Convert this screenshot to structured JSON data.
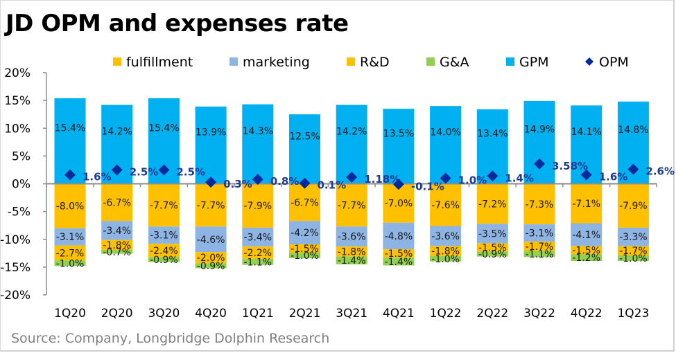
{
  "title": "JD OPM and expenses rate",
  "source": "Source: Company, Longbridge Dolphin Research",
  "colors": {
    "fulfillment": "#ffc000",
    "marketing": "#8eb4e3",
    "rnd": "#ffc000",
    "gna": "#92d050",
    "gpm": "#00b0f0",
    "opm": "#002b9c",
    "axis": "#8c8c8c"
  },
  "chart_data": {
    "type": "bar",
    "subtype": "stacked-bar-with-scatter",
    "title": "JD OPM and expenses rate",
    "xlabel": "",
    "ylabel": "",
    "ylim": [
      -20,
      20
    ],
    "yticks": [
      20,
      15,
      10,
      5,
      0,
      -5,
      -10,
      -15,
      -20
    ],
    "ytick_labels": [
      "20%",
      "15%",
      "10%",
      "5%",
      "0%",
      "-5%",
      "-10%",
      "-15%",
      "-20%"
    ],
    "grid": false,
    "legend_position": "top",
    "legend": [
      "fulfillment",
      "marketing",
      "R&D",
      "G&A",
      "GPM",
      "OPM"
    ],
    "categories": [
      "1Q20",
      "2Q20",
      "3Q20",
      "4Q20",
      "1Q21",
      "2Q21",
      "3Q21",
      "4Q21",
      "1Q22",
      "2Q22",
      "3Q22",
      "4Q22",
      "1Q23"
    ],
    "series": [
      {
        "name": "GPM",
        "key": "gpm",
        "type": "bar",
        "values": [
          15.4,
          14.2,
          15.4,
          13.9,
          14.3,
          12.5,
          14.2,
          13.5,
          14.0,
          13.4,
          14.9,
          14.1,
          14.8
        ],
        "labels": [
          "15.4%",
          "14.2%",
          "15.4%",
          "13.9%",
          "14.3%",
          "12.5%",
          "14.2%",
          "13.5%",
          "14.0%",
          "13.4%",
          "14.9%",
          "14.1%",
          "14.8%"
        ]
      },
      {
        "name": "fulfillment",
        "key": "fulfillment",
        "type": "bar",
        "values": [
          -8.0,
          -6.7,
          -7.7,
          -7.7,
          -7.9,
          -6.7,
          -7.7,
          -7.0,
          -7.6,
          -7.2,
          -7.3,
          -7.1,
          -7.9
        ],
        "labels": [
          "-8.0%",
          "-6.7%",
          "-7.7%",
          "-7.7%",
          "-7.9%",
          "-6.7%",
          "-7.7%",
          "-7.0%",
          "-7.6%",
          "-7.2%",
          "-7.3%",
          "-7.1%",
          "-7.9%"
        ]
      },
      {
        "name": "marketing",
        "key": "marketing",
        "type": "bar",
        "values": [
          -3.1,
          -3.4,
          -3.1,
          -4.6,
          -3.4,
          -4.2,
          -3.6,
          -4.8,
          -3.6,
          -3.5,
          -3.1,
          -4.1,
          -3.3
        ],
        "labels": [
          "-3.1%",
          "-3.4%",
          "-3.1%",
          "-4.6%",
          "-3.4%",
          "-4.2%",
          "-3.6%",
          "-4.8%",
          "-3.6%",
          "-3.5%",
          "-3.1%",
          "-4.1%",
          "-3.3%"
        ]
      },
      {
        "name": "R&D",
        "key": "rnd",
        "type": "bar",
        "values": [
          -2.7,
          -1.8,
          -2.4,
          -2.0,
          -2.2,
          -1.5,
          -1.8,
          -1.5,
          -1.8,
          -1.5,
          -1.7,
          -1.5,
          -1.7
        ],
        "labels": [
          "-2.7%",
          "-1.8%",
          "-2.4%",
          "-2.0%",
          "-2.2%",
          "-1.5%",
          "-1.8%",
          "-1.5%",
          "-1.8%",
          "-1.5%",
          "-1.7%",
          "-1.5%",
          "-1.7%"
        ]
      },
      {
        "name": "G&A",
        "key": "gna",
        "type": "bar",
        "values": [
          -1.0,
          -0.7,
          -0.9,
          -0.9,
          -1.1,
          -1.0,
          -1.4,
          -1.4,
          -1.0,
          -0.9,
          -1.1,
          -1.2,
          -1.0
        ],
        "labels": [
          "-1.0%",
          "-0.7%",
          "-0.9%",
          "-0.9%",
          "-1.1%",
          "-1.0%",
          "-1.4%",
          "-1.4%",
          "-1.0%",
          "-0.9%",
          "-1.1%",
          "-1.2%",
          "-1.0%"
        ]
      },
      {
        "name": "OPM",
        "key": "opm",
        "type": "scatter",
        "marker": "diamond",
        "values": [
          1.6,
          2.5,
          2.5,
          0.3,
          0.8,
          0.1,
          1.18,
          -0.1,
          1.0,
          1.4,
          3.58,
          1.6,
          2.6
        ],
        "labels": [
          "1.6%",
          "2.5%",
          "2.5%",
          "0.3%",
          "0.8%",
          "0.1%",
          "1.18%",
          "-0.1%",
          "1.0%",
          "1.4%",
          "3.58%",
          "1.6%",
          "2.6%"
        ]
      }
    ]
  }
}
